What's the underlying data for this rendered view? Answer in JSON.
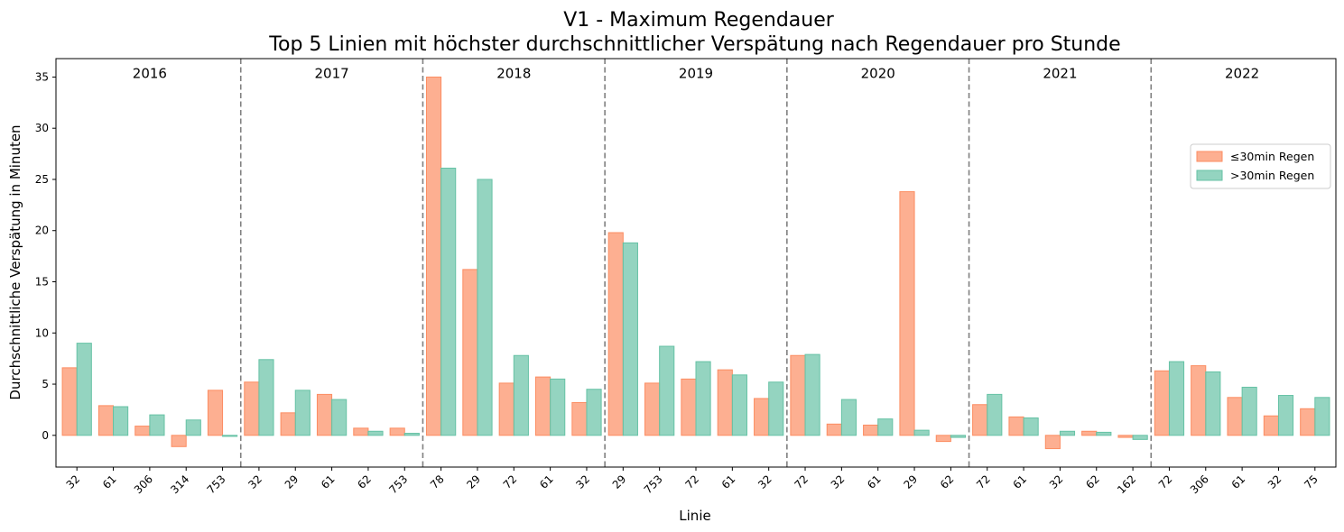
{
  "chart_data": {
    "type": "bar",
    "title_line1": "V1 - Maximum Regendauer",
    "title_line2": "Top 5 Linien mit höchster durchschnittlicher Verspätung nach Regendauer pro Stunde",
    "xlabel": "Linie",
    "ylabel": "Durchschnittliche Verspätung in Minuten",
    "ylim": [
      -3.1,
      36.8
    ],
    "yticks": [
      0,
      5,
      10,
      15,
      20,
      25,
      30,
      35
    ],
    "grid": false,
    "legend_position": "right",
    "colors": {
      "short": "#fc8d62",
      "long": "#66c2a5",
      "separator": "#808080"
    },
    "series": [
      {
        "name": "≤30min Regen",
        "key": "short"
      },
      {
        "name": ">30min Regen",
        "key": "long"
      }
    ],
    "groups": [
      {
        "year": "2016",
        "lines": [
          "32",
          "61",
          "306",
          "314",
          "753"
        ],
        "short": [
          6.6,
          2.9,
          0.9,
          -1.1,
          4.4
        ],
        "long": [
          9.0,
          2.8,
          2.0,
          1.5,
          -0.1
        ]
      },
      {
        "year": "2017",
        "lines": [
          "32",
          "29",
          "61",
          "62",
          "753"
        ],
        "short": [
          5.2,
          2.2,
          4.0,
          0.7,
          0.7
        ],
        "long": [
          7.4,
          4.4,
          3.5,
          0.4,
          0.2
        ]
      },
      {
        "year": "2018",
        "lines": [
          "78",
          "29",
          "72",
          "61",
          "32"
        ],
        "short": [
          35.0,
          16.2,
          5.1,
          5.7,
          3.2
        ],
        "long": [
          26.1,
          25.0,
          7.8,
          5.5,
          4.5
        ]
      },
      {
        "year": "2019",
        "lines": [
          "29",
          "753",
          "72",
          "61",
          "32"
        ],
        "short": [
          19.8,
          5.1,
          5.5,
          6.4,
          3.6
        ],
        "long": [
          18.8,
          8.7,
          7.2,
          5.9,
          5.2
        ]
      },
      {
        "year": "2020",
        "lines": [
          "72",
          "32",
          "61",
          "29",
          "62"
        ],
        "short": [
          7.8,
          1.1,
          1.0,
          23.8,
          -0.6
        ],
        "long": [
          7.9,
          3.5,
          1.6,
          0.5,
          -0.2
        ]
      },
      {
        "year": "2021",
        "lines": [
          "72",
          "61",
          "32",
          "62",
          "162"
        ],
        "short": [
          3.0,
          1.8,
          -1.3,
          0.4,
          -0.2
        ],
        "long": [
          4.0,
          1.7,
          0.4,
          0.3,
          -0.4
        ]
      },
      {
        "year": "2022",
        "lines": [
          "72",
          "306",
          "61",
          "32",
          "75"
        ],
        "short": [
          6.3,
          6.8,
          3.7,
          1.9,
          2.6
        ],
        "long": [
          7.2,
          6.2,
          4.7,
          3.9,
          3.7
        ]
      }
    ]
  }
}
